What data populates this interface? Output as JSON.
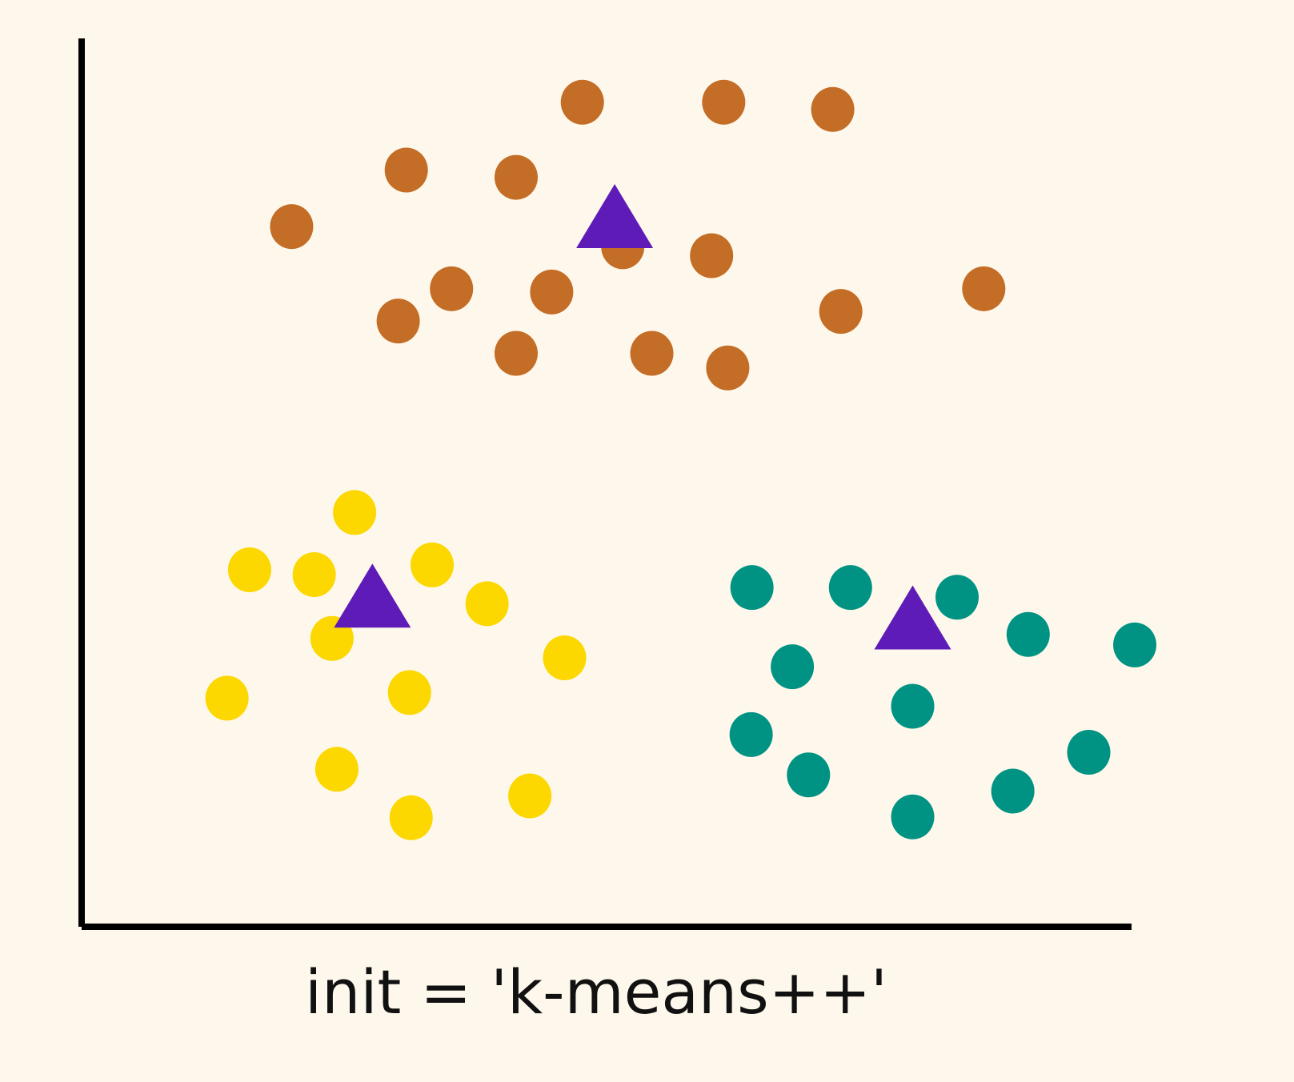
{
  "caption": "init = 'k-means++'",
  "colors": {
    "background": "#fef8ec",
    "axis": "#000000",
    "centroid": "#5f1bb8"
  },
  "chart_data": {
    "type": "scatter",
    "title": "",
    "xlabel": "",
    "ylabel": "",
    "xlim": [
      0,
      1300
    ],
    "ylim": [
      0,
      1100
    ],
    "grid": false,
    "legend": "none",
    "series": [
      {
        "color": "#c46d26",
        "marker": "circle",
        "points": [
          [
            620,
            1021
          ],
          [
            795,
            1021
          ],
          [
            930,
            1012
          ],
          [
            402,
            937
          ],
          [
            538,
            928
          ],
          [
            260,
            867
          ],
          [
            670,
            842
          ],
          [
            780,
            831
          ],
          [
            458,
            790
          ],
          [
            582,
            786
          ],
          [
            940,
            762
          ],
          [
            1117,
            790
          ],
          [
            392,
            750
          ],
          [
            538,
            710
          ],
          [
            706,
            710
          ],
          [
            800,
            692
          ]
        ]
      },
      {
        "color": "#fcd700",
        "marker": "circle",
        "points": [
          [
            338,
            513
          ],
          [
            208,
            442
          ],
          [
            288,
            436
          ],
          [
            434,
            448
          ],
          [
            502,
            400
          ],
          [
            310,
            357
          ],
          [
            598,
            333
          ],
          [
            180,
            283
          ],
          [
            406,
            290
          ],
          [
            316,
            195
          ],
          [
            555,
            162
          ],
          [
            408,
            135
          ]
        ]
      },
      {
        "color": "#009383",
        "marker": "circle",
        "points": [
          [
            830,
            420
          ],
          [
            952,
            420
          ],
          [
            1084,
            408
          ],
          [
            1172,
            362
          ],
          [
            1304,
            349
          ],
          [
            880,
            322
          ],
          [
            1029,
            273
          ],
          [
            829,
            238
          ],
          [
            900,
            188
          ],
          [
            1247,
            216
          ],
          [
            1153,
            168
          ],
          [
            1029,
            136
          ]
        ]
      },
      {
        "color": "#5f1bb8",
        "marker": "triangle",
        "points": [
          [
            660,
            876
          ],
          [
            360,
            406
          ],
          [
            1029,
            379
          ]
        ]
      }
    ]
  }
}
